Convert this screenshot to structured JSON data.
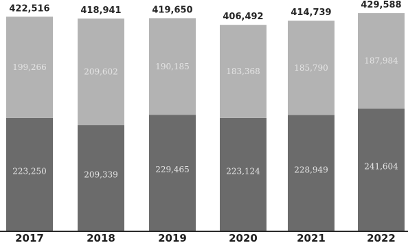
{
  "chart_data": {
    "type": "bar",
    "stacked": true,
    "categories": [
      "2017",
      "2018",
      "2019",
      "2020",
      "2021",
      "2022"
    ],
    "totals": [
      "422,516",
      "418,941",
      "419,650",
      "406,492",
      "414,739",
      "429,588"
    ],
    "series": [
      {
        "values": [
          223250,
          209339,
          229465,
          223124,
          228949,
          241604
        ],
        "labels": [
          "223,250",
          "209,339",
          "229,465",
          "223,124",
          "228,949",
          "241,604"
        ],
        "color": "#6b6b6b"
      },
      {
        "values": [
          199266,
          209602,
          190185,
          183368,
          185790,
          187984
        ],
        "labels": [
          "199,266",
          "209,602",
          "190,185",
          "183,368",
          "185,790",
          "187,984"
        ],
        "color": "#b3b3b3"
      }
    ],
    "ylim": [
      0,
      430000
    ],
    "grid": false,
    "legend": "none"
  }
}
